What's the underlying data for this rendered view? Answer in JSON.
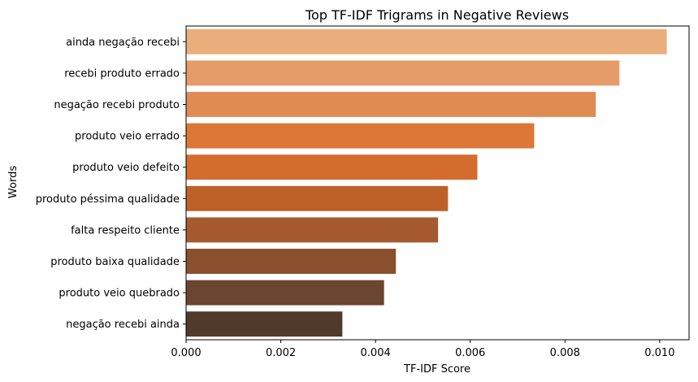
{
  "chart_data": {
    "type": "bar",
    "orientation": "horizontal",
    "title": "Top TF-IDF Trigrams in Negative Reviews",
    "xlabel": "TF-IDF Score",
    "ylabel": "Words",
    "xlim": [
      0,
      0.01062
    ],
    "xticks": [
      "0.000",
      "0.002",
      "0.004",
      "0.006",
      "0.008",
      "0.010"
    ],
    "xtick_values": [
      0,
      0.002,
      0.004,
      0.006,
      0.008,
      0.01
    ],
    "grid": false,
    "categories": [
      "ainda negação recebi",
      "recebi produto errado",
      "negação recebi produto",
      "produto veio errado",
      "produto veio defeito",
      "produto péssima qualidade",
      "falta respeito cliente",
      "produto baixa qualidade",
      "produto veio quebrado",
      "negação recebi ainda"
    ],
    "values": [
      0.01015,
      0.00915,
      0.00865,
      0.00735,
      0.00615,
      0.00553,
      0.00532,
      0.00443,
      0.00418,
      0.0033
    ],
    "colors": [
      "#EAAE7C",
      "#E69C68",
      "#E08B53",
      "#DC7736",
      "#D46C2E",
      "#BE6128",
      "#A65A2F",
      "#8A4F2C",
      "#6B452F",
      "#4F3A2C"
    ]
  }
}
